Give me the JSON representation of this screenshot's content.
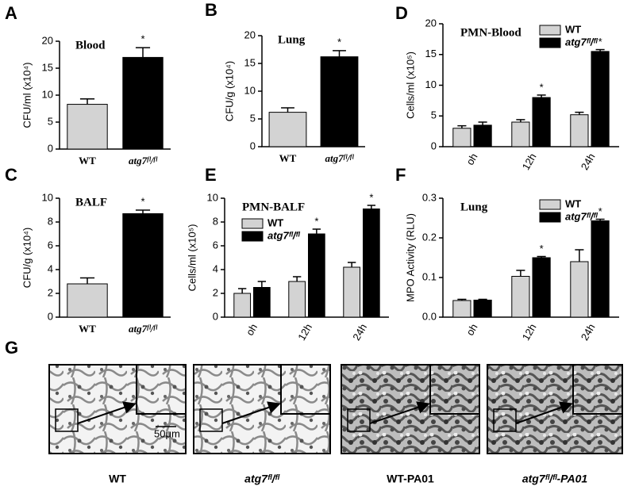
{
  "chart_data": [
    {
      "type": "bar",
      "panel": "A",
      "title": "Blood",
      "ylabel": "CFU/ml (x10⁴)",
      "categories": [
        "WT",
        "atg7ᶠˡ/ᶠˡ"
      ],
      "values": [
        8.3,
        17
      ],
      "errors": [
        1.0,
        1.8
      ],
      "colors": [
        "#d3d3d3",
        "#000000"
      ],
      "significant": [
        false,
        true
      ],
      "marker": "*",
      "ylim": [
        0,
        20
      ],
      "yticks": [
        0,
        5,
        10,
        15,
        20
      ]
    },
    {
      "type": "bar",
      "panel": "B",
      "title": "Lung",
      "ylabel": "CFU/g (x10⁴)",
      "categories": [
        "WT",
        "atg7ᶠˡ/ᶠˡ"
      ],
      "values": [
        6.2,
        16.2
      ],
      "errors": [
        0.8,
        1.1
      ],
      "colors": [
        "#d3d3d3",
        "#000000"
      ],
      "significant": [
        false,
        true
      ],
      "marker": "*",
      "ylim": [
        0,
        20
      ],
      "yticks": [
        0,
        5,
        10,
        15,
        20
      ]
    },
    {
      "type": "bar",
      "panel": "C",
      "title": "BALF",
      "ylabel": "CFU/g (x10⁴)",
      "categories": [
        "WT",
        "atg7ᶠˡ/ᶠˡ"
      ],
      "values": [
        2.8,
        8.7
      ],
      "errors": [
        0.5,
        0.3
      ],
      "colors": [
        "#d3d3d3",
        "#000000"
      ],
      "significant": [
        false,
        true
      ],
      "marker": "*",
      "ylim": [
        0,
        10
      ],
      "yticks": [
        0,
        2,
        4,
        6,
        8,
        10
      ]
    },
    {
      "type": "grouped_bar",
      "panel": "D",
      "title": "PMN-Blood",
      "ylabel": "Cells/ml (x10⁵)",
      "categories": [
        "oh",
        "12h",
        "24h"
      ],
      "legend": "upper right",
      "marker": "*",
      "series": [
        {
          "name": "WT",
          "color": "#d3d3d3",
          "values": [
            3.0,
            4.0,
            5.2
          ],
          "errors": [
            0.4,
            0.4,
            0.4
          ],
          "significant": [
            false,
            false,
            false
          ]
        },
        {
          "name": "atg7ᶠˡ/ᶠˡ",
          "color": "#000000",
          "values": [
            3.5,
            8.0,
            15.5
          ],
          "errors": [
            0.5,
            0.4,
            0.3
          ],
          "significant": [
            false,
            true,
            true
          ]
        }
      ],
      "ylim": [
        0,
        20
      ],
      "yticks": [
        0,
        5,
        10,
        15,
        20
      ]
    },
    {
      "type": "grouped_bar",
      "panel": "E",
      "title": "PMN-BALF",
      "ylabel": "Cells/ml (x10⁵)",
      "categories": [
        "oh",
        "12h",
        "24h"
      ],
      "legend": "upper left",
      "marker": "*",
      "series": [
        {
          "name": "WT",
          "color": "#d3d3d3",
          "values": [
            2.0,
            3.0,
            4.2
          ],
          "errors": [
            0.4,
            0.4,
            0.4
          ],
          "significant": [
            false,
            false,
            false
          ]
        },
        {
          "name": "atg7ᶠˡ/ᶠˡ",
          "color": "#000000",
          "values": [
            2.5,
            7.0,
            9.1
          ],
          "errors": [
            0.5,
            0.4,
            0.3
          ],
          "significant": [
            false,
            true,
            true
          ]
        }
      ],
      "ylim": [
        0,
        10
      ],
      "yticks": [
        0,
        2,
        4,
        6,
        8,
        10
      ]
    },
    {
      "type": "grouped_bar",
      "panel": "F",
      "title": "Lung",
      "ylabel": "MPO Activity (RLU)",
      "categories": [
        "oh",
        "12h",
        "24h"
      ],
      "legend": "upper right",
      "marker": "*",
      "series": [
        {
          "name": "WT",
          "color": "#d3d3d3",
          "values": [
            0.042,
            0.103,
            0.14
          ],
          "errors": [
            0.003,
            0.015,
            0.03
          ],
          "significant": [
            false,
            false,
            false
          ]
        },
        {
          "name": "atg7ᶠˡ/ᶠˡ",
          "color": "#000000",
          "values": [
            0.043,
            0.15,
            0.243
          ],
          "errors": [
            0.002,
            0.003,
            0.004
          ],
          "significant": [
            false,
            true,
            true
          ]
        }
      ],
      "ylim": [
        0,
        0.3
      ],
      "yticks": [
        {
          "value": 0,
          "label": "0.0"
        },
        0.1,
        0.2,
        0.3
      ]
    }
  ],
  "panel_g": {
    "label": "G",
    "scale_bar": "50μm",
    "captions": [
      "WT",
      "atg7ᶠˡ/ᶠˡ",
      "WT-PA01",
      "atg7ᶠˡ/ᶠˡ-PA01"
    ]
  }
}
